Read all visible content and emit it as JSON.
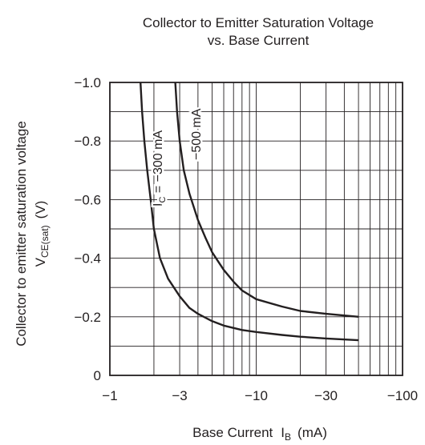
{
  "chart_data": {
    "type": "line",
    "title": "Collector to Emitter Saturation Voltage",
    "subtitle": "vs. Base Current",
    "xlabel": "Base Current",
    "xlabel_symbol": "I",
    "xlabel_sub": "B",
    "xlabel_unit": "(mA)",
    "ylabel": "Collector to emitter saturation voltage",
    "ylabel2_symbol": "V",
    "ylabel2_sub": "CE(sat)",
    "ylabel2_unit": "(V)",
    "x_scale": "log",
    "xlim": [
      -1,
      -100
    ],
    "ylim": [
      0,
      -1.0
    ],
    "grid": true,
    "x_ticks": [
      {
        "value": -1,
        "label": "−1"
      },
      {
        "value": -3,
        "label": "−3"
      },
      {
        "value": -10,
        "label": "−10"
      },
      {
        "value": -30,
        "label": "−30"
      },
      {
        "value": -100,
        "label": "−100"
      }
    ],
    "y_ticks": [
      {
        "value": 0,
        "label": "0"
      },
      {
        "value": -0.2,
        "label": "−0.2"
      },
      {
        "value": -0.4,
        "label": "−0.4"
      },
      {
        "value": -0.6,
        "label": "−0.6"
      },
      {
        "value": -0.8,
        "label": "−0.8"
      },
      {
        "value": -1.0,
        "label": "−1.0"
      }
    ],
    "series": [
      {
        "name": "−300 mA",
        "label_prefix": "I",
        "label_sub": "C",
        "label_eq": " = −300 mA",
        "x": [
          -1.62,
          -1.66,
          -1.72,
          -1.8,
          -1.9,
          -2.0,
          -2.2,
          -2.5,
          -3.0,
          -3.5,
          -4.0,
          -5.0,
          -6.0,
          -8.0,
          -10.0,
          -15.0,
          -20.0,
          -30.0,
          -50.0
        ],
        "y": [
          -1.0,
          -0.9,
          -0.8,
          -0.7,
          -0.6,
          -0.5,
          -0.4,
          -0.33,
          -0.27,
          -0.23,
          -0.21,
          -0.185,
          -0.17,
          -0.155,
          -0.148,
          -0.138,
          -0.132,
          -0.126,
          -0.12
        ]
      },
      {
        "name": "−500 mA",
        "label_prefix": "",
        "label_sub": "",
        "label_eq": "−500 mA",
        "x": [
          -2.8,
          -2.88,
          -3.0,
          -3.2,
          -3.5,
          -4.0,
          -4.5,
          -5.0,
          -6.0,
          -7.0,
          -8.0,
          -10.0,
          -15.0,
          -20.0,
          -30.0,
          -50.0
        ],
        "y": [
          -1.0,
          -0.9,
          -0.8,
          -0.7,
          -0.62,
          -0.53,
          -0.47,
          -0.42,
          -0.36,
          -0.32,
          -0.29,
          -0.26,
          -0.235,
          -0.22,
          -0.21,
          -0.2
        ]
      }
    ]
  }
}
